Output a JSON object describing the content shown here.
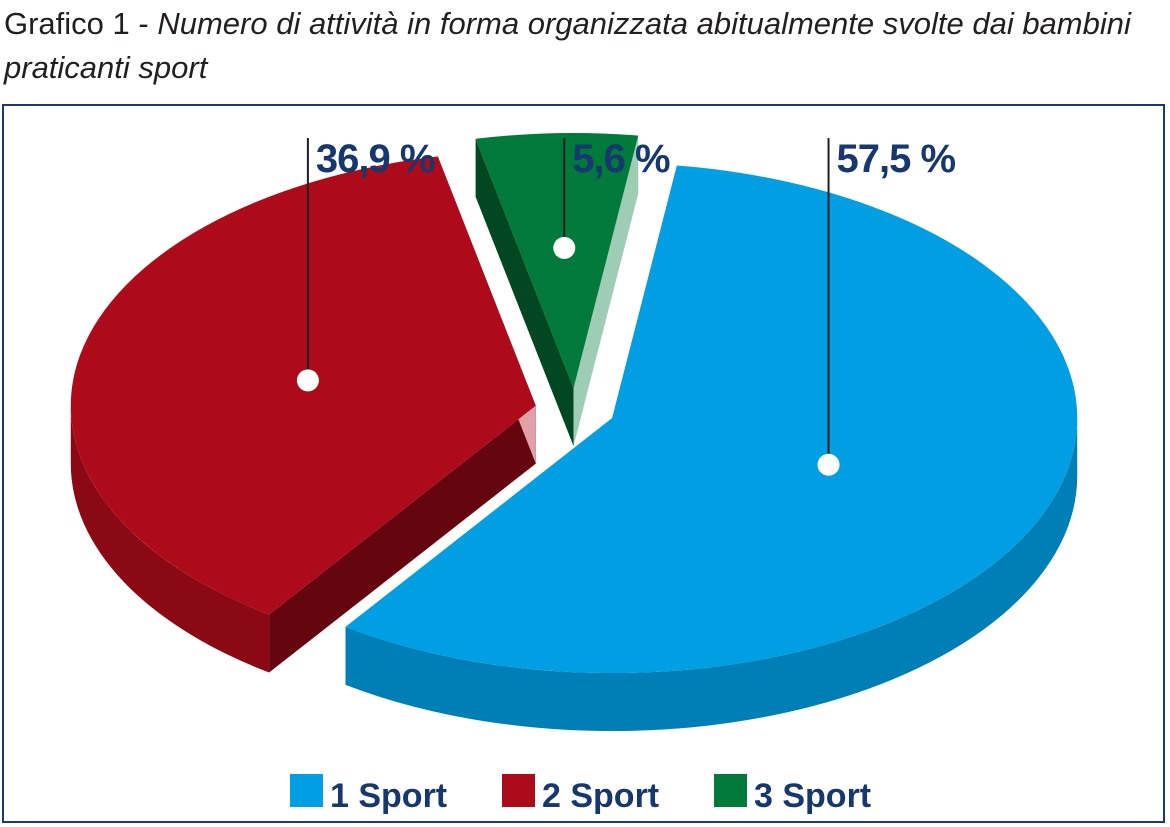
{
  "caption": {
    "prefix": "Grafico 1 - ",
    "rest": "Numero di attività in forma organizzata abitualmente svolte dai bambini praticanti sport"
  },
  "chart_data": {
    "type": "pie",
    "categories": [
      "1 Sport",
      "2 Sport",
      "3 Sport"
    ],
    "values": [
      57.5,
      36.9,
      5.6
    ],
    "value_labels": [
      "57,5 %",
      "36,9 %",
      "5,6 %"
    ],
    "colors": [
      "#009fe3",
      "#ae0b1a",
      "#007a3a"
    ],
    "legend_placement": "bottom",
    "exploded": true,
    "three_d": true
  }
}
